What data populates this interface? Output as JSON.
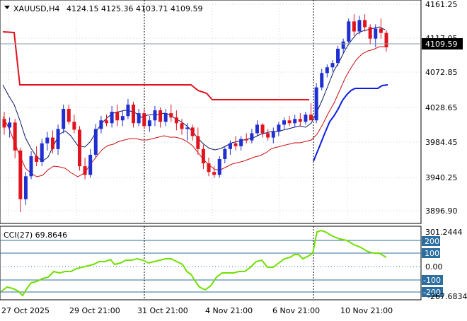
{
  "header": {
    "symbol": "XAUUSD,H4",
    "ohlc": "4124.15 4125.36 4103.71 4109.59"
  },
  "price_axis": {
    "ticks": [
      "4161.25",
      "4117.05",
      "4072.85",
      "4028.65",
      "3984.45",
      "3940.25",
      "3896.90"
    ],
    "current_price_label": "4109.59"
  },
  "indicator": {
    "label": "CCI(27) 69.8646",
    "axis_labels": [
      "301.2444",
      "200",
      "100",
      "0.00",
      "-100",
      "-200",
      "-267.6834"
    ]
  },
  "time_axis": {
    "labels": [
      "27 Oct 2025",
      "29 Oct 21:00",
      "31 Oct 21:00",
      "4 Nov 21:00",
      "6 Nov 21:00",
      "10 Nov 21:00"
    ]
  },
  "colors": {
    "bull": "#1f2fd0",
    "bear": "#e0141e",
    "grid": "#c8d4dc",
    "cci": "#70e000",
    "level_box": "#2c6ea0",
    "sar": "#e0141e",
    "bluelevel": "#0b1ee0",
    "fastma": "#0a1a66",
    "slowma": "#cc1010"
  },
  "chart_data": {
    "type": "candlestick",
    "ylim": [
      3880,
      4170
    ],
    "candles": [
      {
        "o": 4010,
        "h": 4020,
        "l": 3988,
        "c": 3998
      },
      {
        "o": 3998,
        "h": 4012,
        "l": 3984,
        "c": 4005
      },
      {
        "o": 4005,
        "h": 4010,
        "l": 3955,
        "c": 3966
      },
      {
        "o": 3966,
        "h": 3970,
        "l": 3880,
        "c": 3898
      },
      {
        "o": 3898,
        "h": 3936,
        "l": 3890,
        "c": 3930
      },
      {
        "o": 3930,
        "h": 3965,
        "l": 3926,
        "c": 3958
      },
      {
        "o": 3958,
        "h": 3972,
        "l": 3944,
        "c": 3950
      },
      {
        "o": 3950,
        "h": 3982,
        "l": 3944,
        "c": 3976
      },
      {
        "o": 3976,
        "h": 3992,
        "l": 3966,
        "c": 3984
      },
      {
        "o": 3984,
        "h": 3994,
        "l": 3962,
        "c": 3968
      },
      {
        "o": 3968,
        "h": 4002,
        "l": 3960,
        "c": 3996
      },
      {
        "o": 3996,
        "h": 4030,
        "l": 3990,
        "c": 4024
      },
      {
        "o": 4024,
        "h": 4030,
        "l": 4002,
        "c": 4006
      },
      {
        "o": 4006,
        "h": 4016,
        "l": 3990,
        "c": 3995
      },
      {
        "o": 3995,
        "h": 4000,
        "l": 3938,
        "c": 3944
      },
      {
        "o": 3944,
        "h": 3956,
        "l": 3926,
        "c": 3932
      },
      {
        "o": 3932,
        "h": 3968,
        "l": 3928,
        "c": 3960
      },
      {
        "o": 3960,
        "h": 4003,
        "l": 3955,
        "c": 3996
      },
      {
        "o": 3996,
        "h": 4014,
        "l": 3990,
        "c": 4008
      },
      {
        "o": 4008,
        "h": 4016,
        "l": 4000,
        "c": 4004
      },
      {
        "o": 4004,
        "h": 4028,
        "l": 3998,
        "c": 4020
      },
      {
        "o": 4020,
        "h": 4030,
        "l": 4000,
        "c": 4008
      },
      {
        "o": 4008,
        "h": 4022,
        "l": 4000,
        "c": 4014
      },
      {
        "o": 4014,
        "h": 4038,
        "l": 4010,
        "c": 4030
      },
      {
        "o": 4030,
        "h": 4034,
        "l": 3998,
        "c": 4004
      },
      {
        "o": 4004,
        "h": 4024,
        "l": 4000,
        "c": 4018
      },
      {
        "o": 4018,
        "h": 4024,
        "l": 3996,
        "c": 4000
      },
      {
        "o": 4000,
        "h": 4014,
        "l": 3992,
        "c": 4008
      },
      {
        "o": 4008,
        "h": 4028,
        "l": 4000,
        "c": 4022
      },
      {
        "o": 4022,
        "h": 4026,
        "l": 3998,
        "c": 4006
      },
      {
        "o": 4006,
        "h": 4024,
        "l": 4000,
        "c": 4018
      },
      {
        "o": 4018,
        "h": 4030,
        "l": 4006,
        "c": 4012
      },
      {
        "o": 4012,
        "h": 4022,
        "l": 3994,
        "c": 4004
      },
      {
        "o": 4004,
        "h": 4010,
        "l": 3988,
        "c": 3996
      },
      {
        "o": 3996,
        "h": 4004,
        "l": 3980,
        "c": 3998
      },
      {
        "o": 3998,
        "h": 4002,
        "l": 3980,
        "c": 3986
      },
      {
        "o": 3986,
        "h": 3998,
        "l": 3960,
        "c": 3968
      },
      {
        "o": 3968,
        "h": 3974,
        "l": 3940,
        "c": 3948
      },
      {
        "o": 3948,
        "h": 3956,
        "l": 3930,
        "c": 3936
      },
      {
        "o": 3936,
        "h": 3944,
        "l": 3928,
        "c": 3932
      },
      {
        "o": 3932,
        "h": 3958,
        "l": 3928,
        "c": 3954
      },
      {
        "o": 3954,
        "h": 3972,
        "l": 3948,
        "c": 3968
      },
      {
        "o": 3968,
        "h": 3980,
        "l": 3960,
        "c": 3976
      },
      {
        "o": 3976,
        "h": 3986,
        "l": 3966,
        "c": 3972
      },
      {
        "o": 3972,
        "h": 3986,
        "l": 3966,
        "c": 3982
      },
      {
        "o": 3982,
        "h": 3990,
        "l": 3976,
        "c": 3980
      },
      {
        "o": 3980,
        "h": 3996,
        "l": 3976,
        "c": 3990
      },
      {
        "o": 3990,
        "h": 4008,
        "l": 3986,
        "c": 4002
      },
      {
        "o": 4002,
        "h": 4004,
        "l": 3984,
        "c": 3990
      },
      {
        "o": 3990,
        "h": 3996,
        "l": 3980,
        "c": 3984
      },
      {
        "o": 3984,
        "h": 3998,
        "l": 3976,
        "c": 3992
      },
      {
        "o": 3992,
        "h": 4006,
        "l": 3986,
        "c": 4002
      },
      {
        "o": 4002,
        "h": 4012,
        "l": 3996,
        "c": 4008
      },
      {
        "o": 4008,
        "h": 4014,
        "l": 4000,
        "c": 4004
      },
      {
        "o": 4004,
        "h": 4016,
        "l": 3998,
        "c": 4010
      },
      {
        "o": 4010,
        "h": 4018,
        "l": 4000,
        "c": 4006
      },
      {
        "o": 4006,
        "h": 4020,
        "l": 4002,
        "c": 4016
      },
      {
        "o": 4016,
        "h": 4032,
        "l": 4010,
        "c": 4008
      },
      {
        "o": 4008,
        "h": 4060,
        "l": 4004,
        "c": 4054
      },
      {
        "o": 4054,
        "h": 4080,
        "l": 4050,
        "c": 4074
      },
      {
        "o": 4074,
        "h": 4086,
        "l": 4068,
        "c": 4082
      },
      {
        "o": 4082,
        "h": 4092,
        "l": 4076,
        "c": 4088
      },
      {
        "o": 4088,
        "h": 4112,
        "l": 4084,
        "c": 4108
      },
      {
        "o": 4108,
        "h": 4122,
        "l": 4102,
        "c": 4118
      },
      {
        "o": 4118,
        "h": 4150,
        "l": 4114,
        "c": 4146
      },
      {
        "o": 4146,
        "h": 4156,
        "l": 4126,
        "c": 4132
      },
      {
        "o": 4132,
        "h": 4154,
        "l": 4128,
        "c": 4148
      },
      {
        "o": 4148,
        "h": 4156,
        "l": 4132,
        "c": 4138
      },
      {
        "o": 4138,
        "h": 4142,
        "l": 4114,
        "c": 4122
      },
      {
        "o": 4122,
        "h": 4142,
        "l": 4110,
        "c": 4136
      },
      {
        "o": 4136,
        "h": 4150,
        "l": 4122,
        "c": 4130
      },
      {
        "o": 4130,
        "h": 4134,
        "l": 4104,
        "c": 4110
      }
    ]
  }
}
